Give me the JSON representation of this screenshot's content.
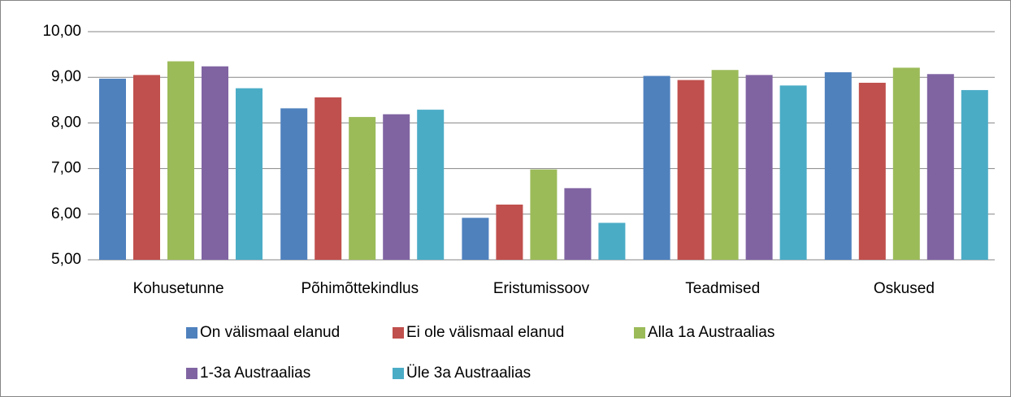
{
  "chart_data": {
    "type": "bar",
    "categories": [
      "Kohusetunne",
      "Põhimõttekindlus",
      "Eristumissoov",
      "Teadmised",
      "Oskused"
    ],
    "series": [
      {
        "name": "On välismaal elanud",
        "color": "#4f81bd",
        "values": [
          8.97,
          8.32,
          5.92,
          9.03,
          9.11
        ]
      },
      {
        "name": "Ei ole välismaal elanud",
        "color": "#c0504d",
        "values": [
          9.05,
          8.56,
          6.21,
          8.94,
          8.88
        ]
      },
      {
        "name": "Alla 1a Austraalias",
        "color": "#9bbb59",
        "values": [
          9.35,
          8.13,
          6.98,
          9.16,
          9.21
        ]
      },
      {
        "name": "1-3a Austraalias",
        "color": "#8064a2",
        "values": [
          9.24,
          8.19,
          6.57,
          9.05,
          9.07
        ]
      },
      {
        "name": "Üle 3a Austraalias",
        "color": "#4bacc6",
        "values": [
          8.76,
          8.29,
          5.81,
          8.82,
          8.72
        ]
      }
    ],
    "ylim": [
      5,
      10
    ],
    "yticks": [
      {
        "value": 5,
        "label": "5,00"
      },
      {
        "value": 6,
        "label": "6,00"
      },
      {
        "value": 7,
        "label": "7,00"
      },
      {
        "value": 8,
        "label": "8,00"
      },
      {
        "value": 9,
        "label": "9,00"
      },
      {
        "value": 10,
        "label": "10,00"
      }
    ],
    "grid": true,
    "legend": "bottom"
  }
}
